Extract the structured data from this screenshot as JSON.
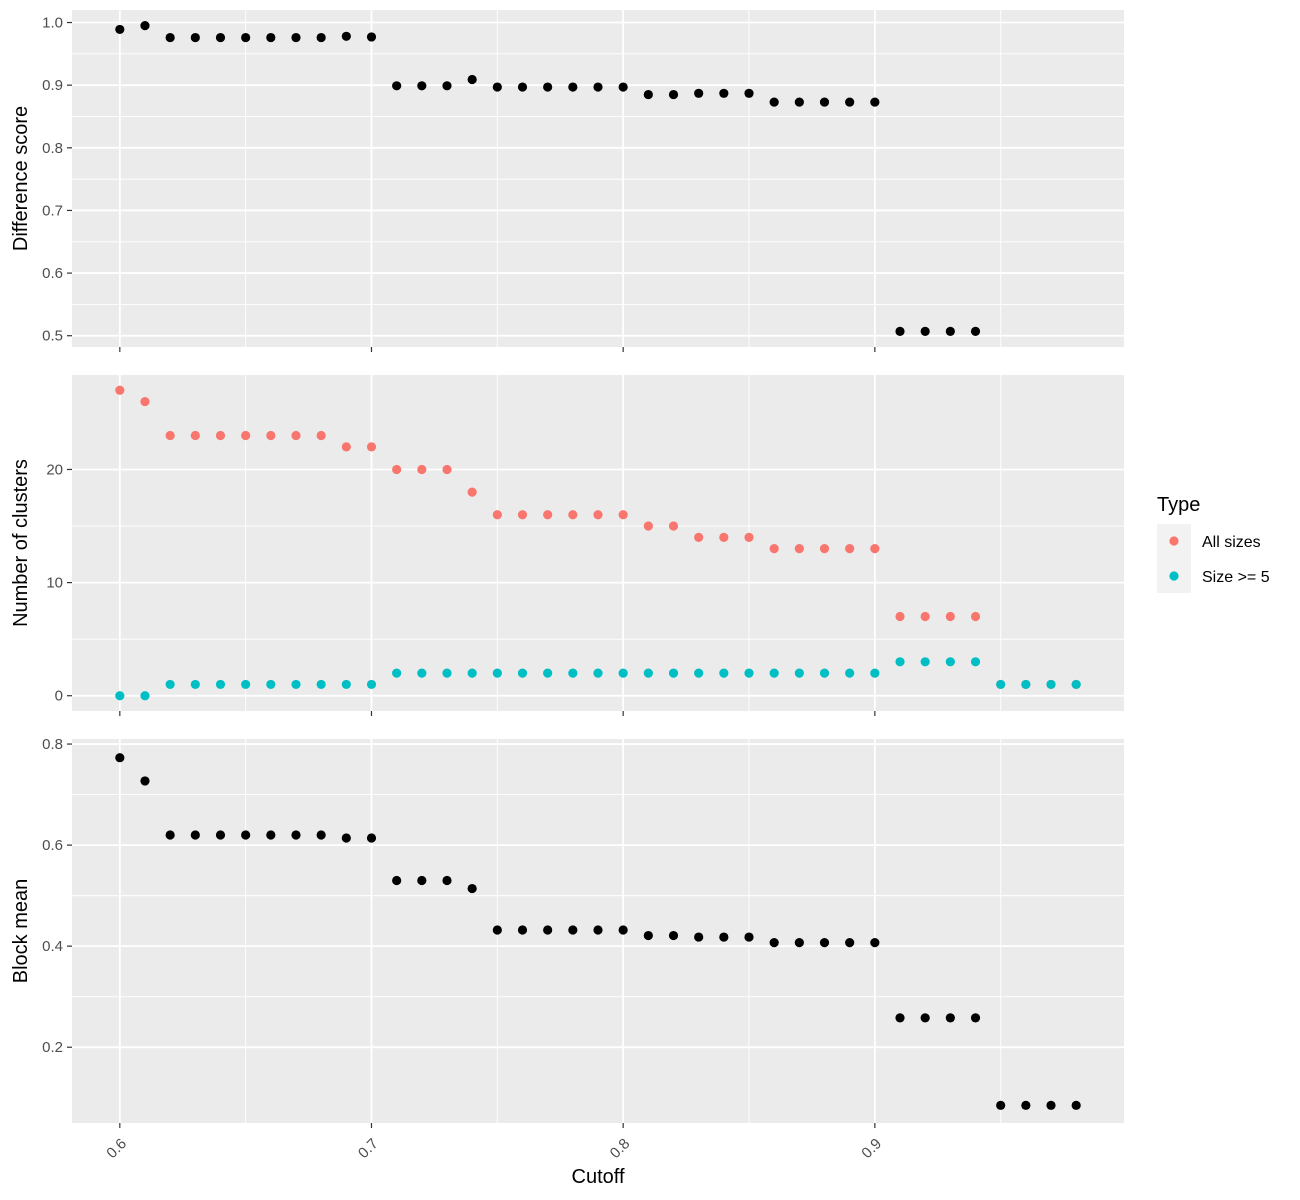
{
  "chart_data": {
    "type": "scatter",
    "xlabel": "Cutoff",
    "xlim": [
      0.581,
      0.999
    ],
    "x_ticks": [
      0.6,
      0.7,
      0.8,
      0.9
    ],
    "x_tick_labels": [
      "0.6",
      "0.7",
      "0.8",
      "0.9"
    ],
    "x": [
      0.6,
      0.61,
      0.62,
      0.63,
      0.64,
      0.65,
      0.66,
      0.67,
      0.68,
      0.69,
      0.7,
      0.71,
      0.72,
      0.73,
      0.74,
      0.75,
      0.76,
      0.77,
      0.78,
      0.79,
      0.8,
      0.81,
      0.82,
      0.83,
      0.84,
      0.85,
      0.86,
      0.87,
      0.88,
      0.89,
      0.9,
      0.91,
      0.92,
      0.93,
      0.94,
      0.95,
      0.96,
      0.97,
      0.98
    ],
    "grid": true,
    "legend_position": "right",
    "panels": [
      {
        "id": "difference",
        "ylabel": "Difference score",
        "ylim": [
          0.482,
          1.02
        ],
        "y_ticks": [
          0.5,
          0.6,
          0.7,
          0.8,
          0.9,
          1.0
        ],
        "y_tick_labels": [
          "0.5",
          "0.6",
          "0.7",
          "0.8",
          "0.9",
          "1.0"
        ],
        "series": [
          {
            "color": "#000000",
            "values": [
              0.989,
              0.995,
              0.976,
              0.976,
              0.976,
              0.976,
              0.976,
              0.976,
              0.976,
              0.978,
              0.977,
              0.899,
              0.899,
              0.899,
              0.909,
              0.897,
              0.897,
              0.897,
              0.897,
              0.897,
              0.897,
              0.885,
              0.885,
              0.887,
              0.887,
              0.887,
              0.873,
              0.873,
              0.873,
              0.873,
              0.873,
              0.507,
              0.507,
              0.507,
              0.507,
              null,
              null,
              null,
              null
            ]
          }
        ]
      },
      {
        "id": "clusters",
        "ylabel": "Number of clusters",
        "ylim": [
          -1.35,
          28.35
        ],
        "y_ticks": [
          0,
          10,
          20
        ],
        "y_tick_labels": [
          "0",
          "10",
          "20"
        ],
        "series": [
          {
            "name": "All sizes",
            "color": "#F8766D",
            "values": [
              27,
              26,
              23,
              23,
              23,
              23,
              23,
              23,
              23,
              22,
              22,
              20,
              20,
              20,
              18,
              16,
              16,
              16,
              16,
              16,
              16,
              15,
              15,
              14,
              14,
              14,
              13,
              13,
              13,
              13,
              13,
              7,
              7,
              7,
              7,
              1,
              1,
              1,
              1
            ]
          },
          {
            "name": "Size >= 5",
            "color": "#00BFC4",
            "values": [
              0,
              0,
              1,
              1,
              1,
              1,
              1,
              1,
              1,
              1,
              1,
              2,
              2,
              2,
              2,
              2,
              2,
              2,
              2,
              2,
              2,
              2,
              2,
              2,
              2,
              2,
              2,
              2,
              2,
              2,
              2,
              3,
              3,
              3,
              3,
              1,
              1,
              1,
              1
            ]
          }
        ]
      },
      {
        "id": "block",
        "ylabel": "Block mean",
        "ylim": [
          0.05,
          0.81
        ],
        "y_ticks": [
          0.2,
          0.4,
          0.6,
          0.8
        ],
        "y_tick_labels": [
          "0.2",
          "0.4",
          "0.6",
          "0.8"
        ],
        "series": [
          {
            "color": "#000000",
            "values": [
              0.773,
              0.727,
              0.62,
              0.62,
              0.62,
              0.62,
              0.62,
              0.62,
              0.62,
              0.614,
              0.614,
              0.53,
              0.53,
              0.53,
              0.514,
              0.432,
              0.432,
              0.432,
              0.432,
              0.432,
              0.432,
              0.421,
              0.421,
              0.418,
              0.418,
              0.418,
              0.407,
              0.407,
              0.407,
              0.407,
              0.407,
              0.258,
              0.258,
              0.258,
              0.258,
              0.085,
              0.085,
              0.085,
              0.085
            ]
          }
        ]
      }
    ],
    "legend": {
      "title": "Type",
      "items": [
        {
          "label": "All sizes",
          "color": "#F8766D"
        },
        {
          "label": "Size >= 5",
          "color": "#00BFC4"
        }
      ]
    }
  }
}
